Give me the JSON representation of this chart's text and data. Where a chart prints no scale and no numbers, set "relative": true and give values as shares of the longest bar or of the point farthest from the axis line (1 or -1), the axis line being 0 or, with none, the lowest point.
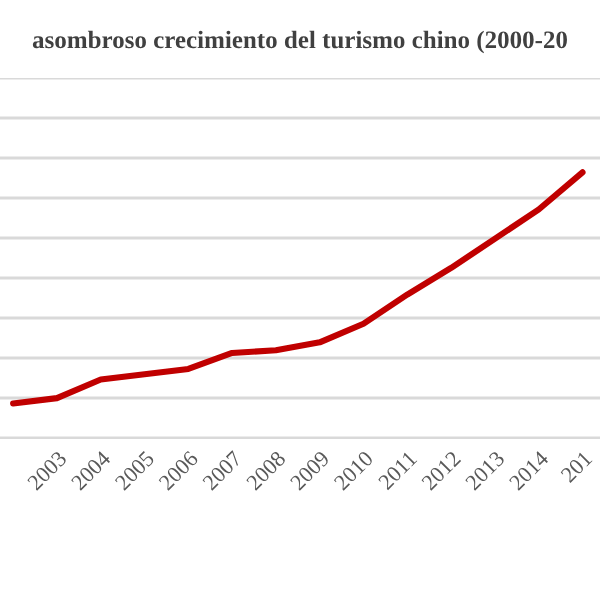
{
  "chart_data": {
    "type": "line",
    "title": "asombroso crecimiento del turismo chino (2000-20",
    "categories": [
      null,
      "2003",
      "2004",
      "2005",
      "2006",
      "2007",
      "2008",
      "2009",
      "2010",
      "2011",
      "2012",
      "2013",
      "2014",
      "201"
    ],
    "series": [
      {
        "color": "#c00000",
        "values": [
          0.13,
          0.15,
          0.22,
          0.24,
          0.26,
          0.32,
          0.33,
          0.36,
          0.43,
          0.54,
          0.64,
          0.75,
          0.86,
          1
        ]
      }
    ],
    "relative": true,
    "grid": "y",
    "marker": "none",
    "line_style": "solid",
    "legend": false
  }
}
